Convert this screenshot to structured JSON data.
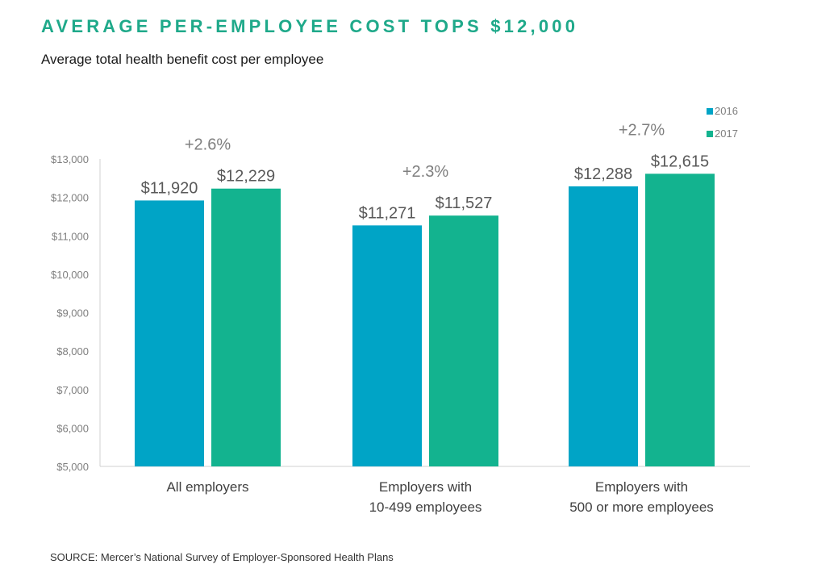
{
  "title": "AVERAGE PER-EMPLOYEE COST TOPS $12,000",
  "subtitle": "Average total health benefit cost per employee",
  "source": "SOURCE:  Mercer’s National Survey of Employer-Sponsored Health Plans",
  "chart_data": {
    "type": "bar",
    "title": "AVERAGE PER-EMPLOYEE COST TOPS $12,000",
    "subtitle": "Average total health benefit cost per employee",
    "categories": [
      [
        "All employers"
      ],
      [
        "Employers with",
        "10-499 employees"
      ],
      [
        "Employers with",
        "500 or more employees"
      ]
    ],
    "series": [
      {
        "name": "2016",
        "color": "#00a4c6",
        "values": [
          11920,
          11271,
          12288
        ],
        "labels": [
          "$11,920",
          "$11,271",
          "$12,288"
        ]
      },
      {
        "name": "2017",
        "color": "#13b38f",
        "values": [
          12229,
          11527,
          12615
        ],
        "labels": [
          "$12,229",
          "$11,527",
          "$12,615"
        ]
      }
    ],
    "change_labels": [
      "+2.6%",
      "+2.3%",
      "+2.7%"
    ],
    "ylim": [
      5000,
      13000
    ],
    "yticks": [
      5000,
      6000,
      7000,
      8000,
      9000,
      10000,
      11000,
      12000,
      13000
    ],
    "ytick_labels": [
      "$5,000",
      "$6,000",
      "$7,000",
      "$8,000",
      "$9,000",
      "$10,000",
      "$11,000",
      "$12,000",
      "$13,000"
    ],
    "grid": false,
    "legend": "top-right"
  }
}
